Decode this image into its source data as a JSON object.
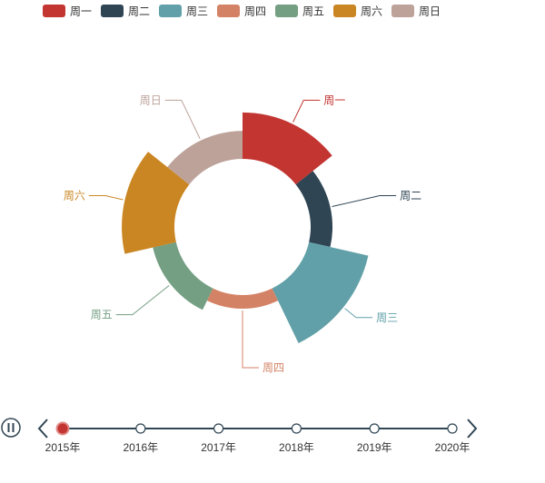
{
  "chart_data": {
    "type": "pie",
    "subtype": "rose-ring",
    "categories": [
      "周一",
      "周二",
      "周三",
      "周四",
      "周五",
      "周六",
      "周日"
    ],
    "values": [
      100,
      40,
      135,
      20,
      45,
      115,
      55
    ],
    "colors": [
      "#c23531",
      "#2f4554",
      "#61a0a8",
      "#d48265",
      "#749f83",
      "#ca8622",
      "#bda29a"
    ],
    "legend": {
      "position": "top-left",
      "entries": [
        "周一",
        "周二",
        "周三",
        "周四",
        "周五",
        "周六",
        "周日"
      ]
    }
  },
  "timeline": {
    "years": [
      "2015年",
      "2016年",
      "2017年",
      "2018年",
      "2019年",
      "2020年"
    ],
    "current_index": 0,
    "play_icon": "pause-icon",
    "prev_icon": "chevron-left-icon",
    "next_icon": "chevron-right-icon",
    "line_color": "#304654",
    "active_color": "#c23531"
  }
}
